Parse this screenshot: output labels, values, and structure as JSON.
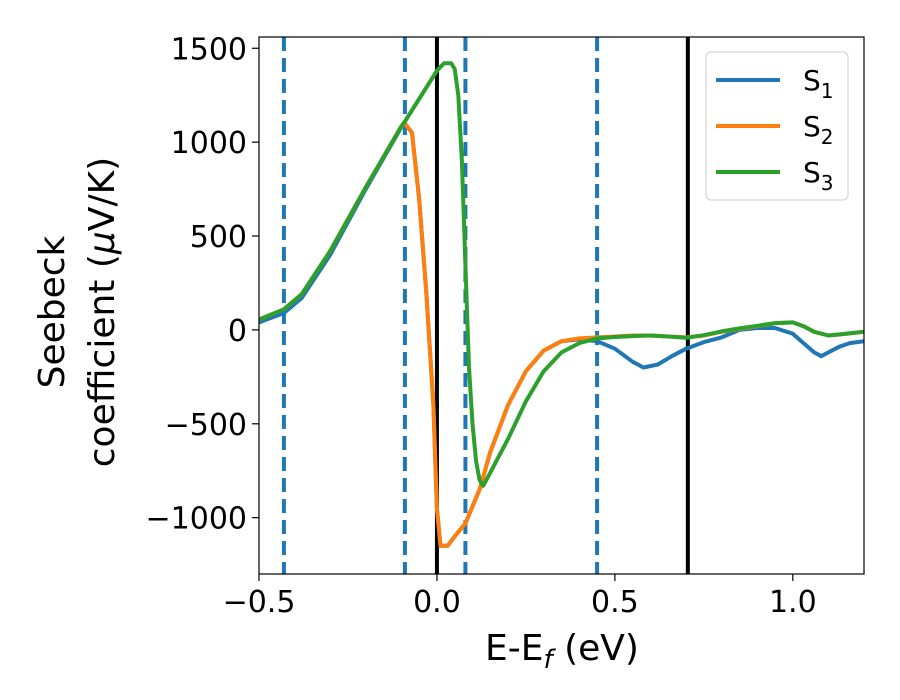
{
  "chart_data": {
    "type": "line",
    "title": "",
    "xlabel": "E-E",
    "xlabel_sub": "f",
    "xlabel_unit": " (eV)",
    "ylabel_line1": "Seebeck",
    "ylabel_line2": "coefficient  (",
    "ylabel_mu": "μ",
    "ylabel_unit": "V/K)",
    "xlim": [
      -0.5,
      1.2
    ],
    "ylim": [
      -1300,
      1560
    ],
    "x_ticks": [
      -0.5,
      0.0,
      0.5,
      1.0
    ],
    "x_tick_labels": [
      "−0.5",
      "0.0",
      "0.5",
      "1.0"
    ],
    "y_ticks": [
      1500,
      1000,
      500,
      0,
      -500,
      -1000
    ],
    "y_tick_labels": [
      "1500",
      "1000",
      "500",
      "0",
      "−500",
      "−1000"
    ],
    "grid": false,
    "legend_position": "top-right",
    "vertical_lines": [
      {
        "x": -0.43,
        "style": "dashed",
        "color": "#1f77b4"
      },
      {
        "x": -0.09,
        "style": "dashed",
        "color": "#1f77b4"
      },
      {
        "x": 0.0,
        "style": "solid",
        "color": "#000000"
      },
      {
        "x": 0.08,
        "style": "dashed",
        "color": "#1f77b4"
      },
      {
        "x": 0.45,
        "style": "dashed",
        "color": "#1f77b4"
      },
      {
        "x": 0.705,
        "style": "solid",
        "color": "#000000"
      }
    ],
    "series": [
      {
        "name": "S",
        "sub": "1",
        "color": "#1f77b4",
        "x": [
          -0.5,
          -0.43,
          -0.38,
          -0.3,
          -0.2,
          -0.1,
          -0.09,
          -0.07,
          -0.05,
          -0.03,
          -0.01,
          0.0,
          0.01,
          0.03,
          0.05,
          0.08,
          0.12,
          0.15,
          0.2,
          0.25,
          0.3,
          0.35,
          0.4,
          0.45,
          0.5,
          0.55,
          0.58,
          0.62,
          0.66,
          0.7,
          0.75,
          0.8,
          0.85,
          0.9,
          0.95,
          1.0,
          1.03,
          1.06,
          1.08,
          1.1,
          1.13,
          1.16,
          1.2
        ],
        "y": [
          40,
          90,
          170,
          400,
          750,
          1080,
          1100,
          1050,
          700,
          200,
          -400,
          -950,
          -1150,
          -1150,
          -1100,
          -1030,
          -850,
          -650,
          -400,
          -220,
          -110,
          -60,
          -50,
          -60,
          -100,
          -170,
          -200,
          -185,
          -140,
          -100,
          -65,
          -40,
          0,
          10,
          10,
          -20,
          -70,
          -120,
          -140,
          -120,
          -90,
          -70,
          -60
        ]
      },
      {
        "name": "S",
        "sub": "2",
        "color": "#ff7f0e",
        "x": [
          -0.5,
          -0.43,
          -0.38,
          -0.3,
          -0.2,
          -0.1,
          -0.09,
          -0.07,
          -0.05,
          -0.03,
          -0.01,
          0.0,
          0.01,
          0.03,
          0.05,
          0.08,
          0.12,
          0.15,
          0.2,
          0.25,
          0.3,
          0.35,
          0.4,
          0.45,
          0.5,
          0.55,
          0.6,
          0.65,
          0.7,
          0.75,
          0.8,
          0.85,
          0.9,
          0.95,
          1.0,
          1.03,
          1.06,
          1.1,
          1.15,
          1.2
        ],
        "y": [
          55,
          110,
          190,
          420,
          760,
          1085,
          1100,
          1050,
          700,
          200,
          -400,
          -950,
          -1150,
          -1150,
          -1100,
          -1030,
          -850,
          -650,
          -400,
          -220,
          -110,
          -60,
          -45,
          -40,
          -35,
          -30,
          -30,
          -35,
          -40,
          -30,
          -10,
          5,
          20,
          35,
          40,
          20,
          -10,
          -30,
          -20,
          -10
        ]
      },
      {
        "name": "S",
        "sub": "3",
        "color": "#2ca02c",
        "x": [
          -0.5,
          -0.43,
          -0.38,
          -0.3,
          -0.2,
          -0.1,
          -0.09,
          -0.05,
          0.0,
          0.02,
          0.04,
          0.05,
          0.06,
          0.07,
          0.08,
          0.09,
          0.1,
          0.11,
          0.12,
          0.13,
          0.15,
          0.2,
          0.25,
          0.3,
          0.35,
          0.4,
          0.45,
          0.5,
          0.55,
          0.6,
          0.65,
          0.7,
          0.75,
          0.8,
          0.85,
          0.9,
          0.95,
          1.0,
          1.03,
          1.06,
          1.1,
          1.15,
          1.2
        ],
        "y": [
          55,
          110,
          190,
          420,
          760,
          1085,
          1110,
          1230,
          1380,
          1420,
          1420,
          1390,
          1250,
          900,
          350,
          -200,
          -500,
          -700,
          -800,
          -830,
          -760,
          -580,
          -380,
          -220,
          -120,
          -70,
          -45,
          -38,
          -33,
          -30,
          -35,
          -42,
          -28,
          -8,
          8,
          22,
          36,
          40,
          20,
          -10,
          -30,
          -20,
          -10
        ]
      }
    ]
  }
}
